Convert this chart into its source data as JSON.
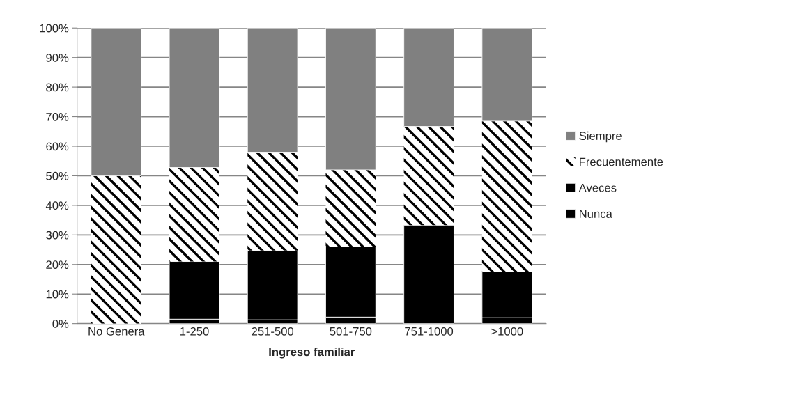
{
  "chart_data": {
    "type": "bar",
    "stacked": true,
    "xlabel": "Ingreso familiar",
    "categories": [
      "No Genera",
      "1-250",
      "251-500",
      "501-750",
      "751-1000",
      ">1000"
    ],
    "series": [
      {
        "name": "Nunca",
        "color": "#000000",
        "values": [
          0,
          1.5,
          1.3,
          2.2,
          0,
          2
        ]
      },
      {
        "name": "Aveces",
        "color": "#000000",
        "values": [
          0,
          19.5,
          23.4,
          23.8,
          33.3,
          15.5
        ]
      },
      {
        "name": "Frecuentemente",
        "color": "#ffffff",
        "values": [
          50,
          31.8,
          33.3,
          26,
          33.4,
          51
        ]
      },
      {
        "name": "Siempre",
        "color": "#808080",
        "values": [
          50,
          47.2,
          42,
          48,
          33.3,
          31.5
        ]
      }
    ],
    "ylim": [
      0,
      100
    ],
    "yticks": [
      {
        "value": 0,
        "label": "0%"
      },
      {
        "value": 10,
        "label": "10%"
      },
      {
        "value": 20,
        "label": "20%"
      },
      {
        "value": 30,
        "label": "30%"
      },
      {
        "value": 40,
        "label": "40%"
      },
      {
        "value": 50,
        "label": "50%"
      },
      {
        "value": 60,
        "label": "60%"
      },
      {
        "value": 70,
        "label": "70%"
      },
      {
        "value": 80,
        "label": "80%"
      },
      {
        "value": 90,
        "label": "90%"
      },
      {
        "value": 100,
        "label": "100%"
      }
    ],
    "grid": "y",
    "legend": "right"
  }
}
